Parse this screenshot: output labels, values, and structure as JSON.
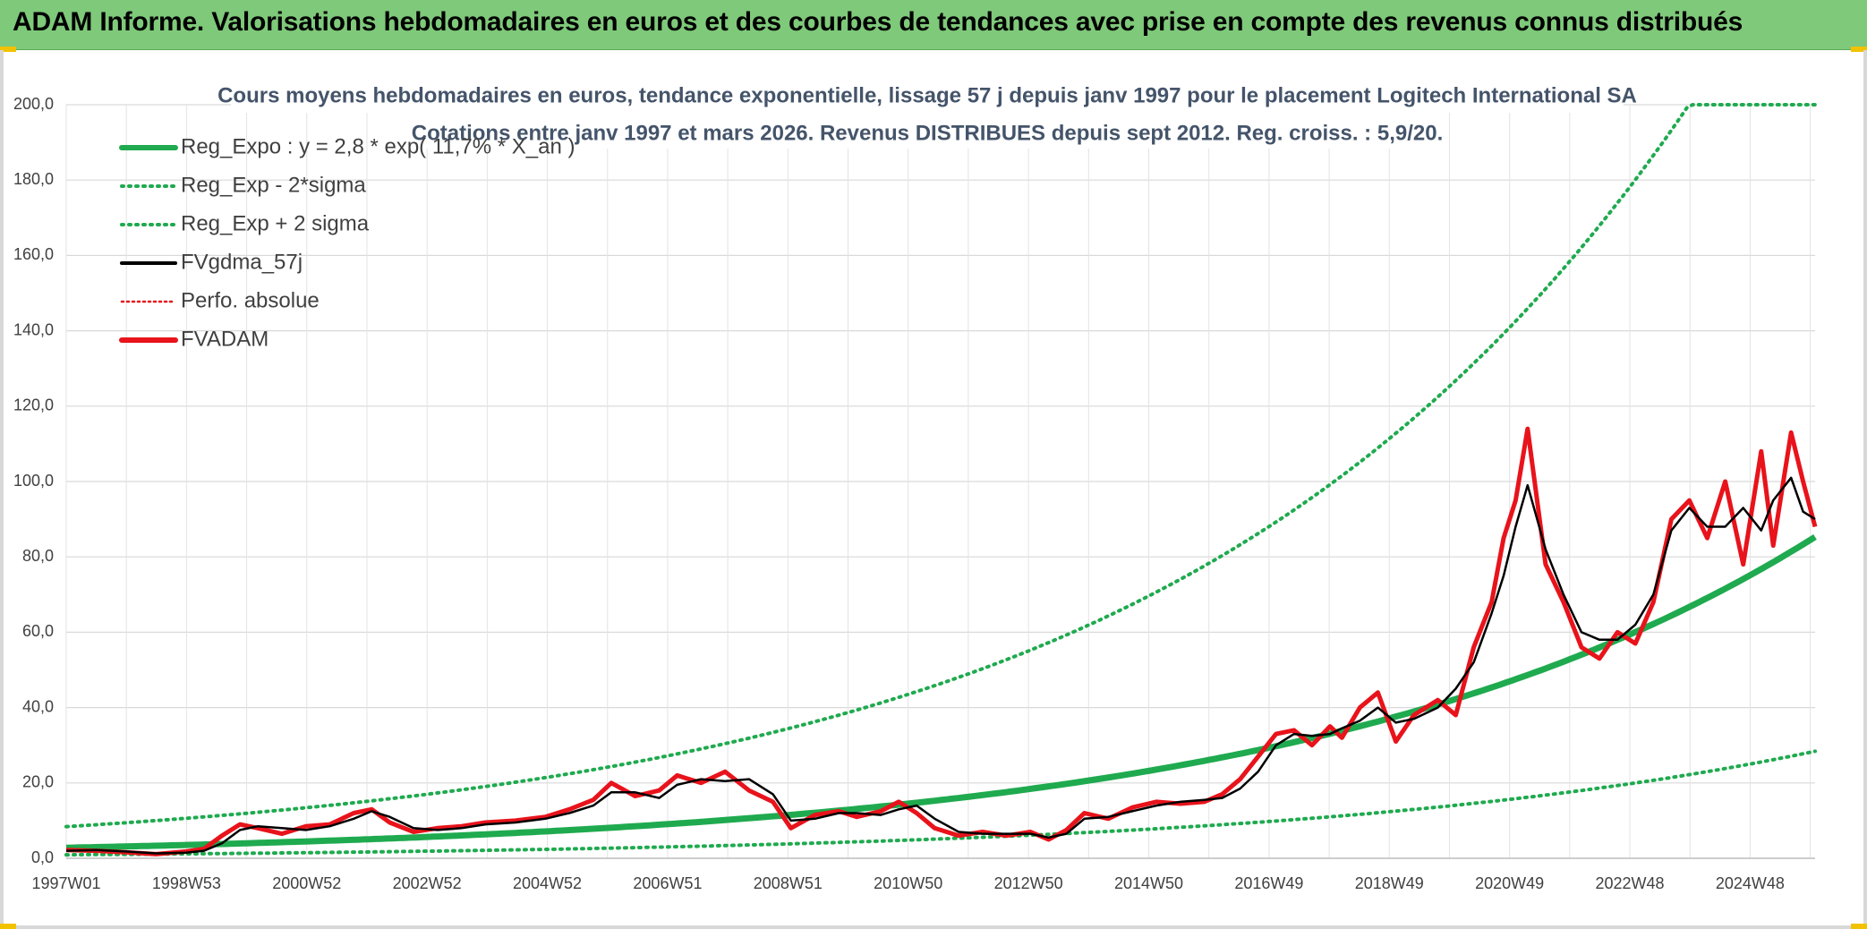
{
  "banner": {
    "title": "ADAM Informe. Valorisations hebdomadaires en euros et des courbes de tendances avec prise en compte des revenus connus distribués"
  },
  "colors": {
    "banner_bg": "#7fc97a",
    "accent_corner": "#f2c200",
    "trend_green": "#1faa4f",
    "black_line": "#000000",
    "red_line": "#e8131b"
  },
  "chart_data": {
    "type": "line",
    "title_line1": "Cours moyens hebdomadaires en euros, tendance exponentielle, lissage 57 j depuis janv 1997 pour le placement Logitech International SA",
    "title_line2": "Cotations entre janv 1997 et mars 2026. Revenus DISTRIBUES depuis sept 2012. Reg. croiss. : 5,9/20.",
    "x_tick_labels": [
      "1997W01",
      "1998W53",
      "2000W52",
      "2002W52",
      "2004W52",
      "2006W51",
      "2008W51",
      "2010W50",
      "2012W50",
      "2014W50",
      "2016W49",
      "2018W49",
      "2020W49",
      "2022W48",
      "2024W48"
    ],
    "x_range": [
      1997.0,
      2026.2
    ],
    "ylim": [
      0,
      200
    ],
    "y_ticks": [
      "0,0",
      "20,0",
      "40,0",
      "60,0",
      "80,0",
      "100,0",
      "120,0",
      "140,0",
      "160,0",
      "180,0",
      "200,0"
    ],
    "grid": true,
    "legend_position": "top-left",
    "legend": [
      {
        "label": "Reg_Expo : y = 2,8 * exp( 11,7% *  X_an )",
        "style": "solid-thick",
        "color": "#1faa4f"
      },
      {
        "label": "Reg_Exp - 2*sigma",
        "style": "dotted",
        "color": "#1faa4f"
      },
      {
        "label": "Reg_Exp + 2 sigma",
        "style": "dotted",
        "color": "#1faa4f"
      },
      {
        "label": "FVgdma_57j",
        "style": "solid",
        "color": "#000000"
      },
      {
        "label": "Perfo. absolue",
        "style": "dotted-thin",
        "color": "#e8131b"
      },
      {
        "label": "FVADAM",
        "style": "solid-thick",
        "color": "#e8131b"
      }
    ],
    "trend": {
      "a": 2.8,
      "rate": 0.117,
      "lower_factor": 0.333,
      "upper_factor": 3.0,
      "cap": 200
    },
    "series": [
      {
        "name": "FVgdma_57j",
        "x": [
          1997.0,
          1997.5,
          1998.0,
          1998.5,
          1999.0,
          1999.3,
          1999.6,
          1999.9,
          2000.2,
          2000.6,
          2001.0,
          2001.4,
          2001.8,
          2002.1,
          2002.4,
          2002.8,
          2003.2,
          2003.6,
          2004.0,
          2004.5,
          2005.0,
          2005.4,
          2005.8,
          2006.1,
          2006.5,
          2006.9,
          2007.2,
          2007.6,
          2008.0,
          2008.4,
          2008.8,
          2009.1,
          2009.5,
          2009.9,
          2010.2,
          2010.6,
          2010.9,
          2011.2,
          2011.5,
          2011.9,
          2012.3,
          2012.7,
          2013.1,
          2013.4,
          2013.7,
          2014.0,
          2014.4,
          2014.8,
          2015.2,
          2015.6,
          2016.0,
          2016.3,
          2016.6,
          2016.9,
          2017.2,
          2017.5,
          2017.8,
          2018.1,
          2018.3,
          2018.6,
          2018.9,
          2019.2,
          2019.5,
          2019.9,
          2020.2,
          2020.5,
          2020.8,
          2021.0,
          2021.2,
          2021.4,
          2021.7,
          2022.0,
          2022.3,
          2022.6,
          2022.9,
          2023.2,
          2023.5,
          2023.8,
          2024.1,
          2024.4,
          2024.7,
          2025.0,
          2025.3,
          2025.5,
          2025.8,
          2026.0,
          2026.2
        ],
        "y": [
          2.0,
          2.2,
          1.8,
          1.3,
          1.5,
          2.0,
          4.0,
          7.5,
          8.5,
          8.0,
          7.5,
          8.5,
          10.5,
          12.5,
          11.0,
          8.0,
          7.5,
          8.0,
          9.0,
          9.5,
          10.5,
          12.0,
          14.0,
          17.5,
          17.5,
          16.0,
          19.5,
          21.0,
          20.5,
          21.0,
          17.0,
          10.0,
          10.5,
          12.0,
          12.0,
          11.5,
          13.0,
          14.0,
          10.5,
          7.0,
          6.5,
          6.5,
          6.5,
          5.5,
          6.5,
          10.5,
          11.0,
          12.5,
          14.0,
          15.0,
          15.5,
          16.0,
          18.5,
          23.0,
          30.0,
          33.0,
          32.5,
          33.0,
          34.5,
          36.5,
          40.0,
          36.0,
          37.0,
          40.0,
          45.0,
          52.0,
          65.0,
          75.0,
          88.0,
          99.0,
          82.0,
          70.0,
          60.0,
          58.0,
          58.0,
          62.0,
          70.0,
          87.0,
          93.0,
          88.0,
          88.0,
          93.0,
          87.0,
          95.0,
          101.0,
          92.0,
          90.0
        ]
      },
      {
        "name": "FVADAM",
        "x": [
          1997.0,
          1997.5,
          1998.0,
          1998.5,
          1999.0,
          1999.3,
          1999.6,
          1999.9,
          2000.2,
          2000.6,
          2001.0,
          2001.4,
          2001.8,
          2002.1,
          2002.4,
          2002.8,
          2003.2,
          2003.6,
          2004.0,
          2004.5,
          2005.0,
          2005.4,
          2005.8,
          2006.1,
          2006.5,
          2006.9,
          2007.2,
          2007.6,
          2008.0,
          2008.4,
          2008.8,
          2009.1,
          2009.5,
          2009.9,
          2010.2,
          2010.6,
          2010.9,
          2011.2,
          2011.5,
          2011.9,
          2012.3,
          2012.7,
          2013.1,
          2013.4,
          2013.7,
          2014.0,
          2014.4,
          2014.8,
          2015.2,
          2015.6,
          2016.0,
          2016.3,
          2016.6,
          2016.9,
          2017.2,
          2017.5,
          2017.8,
          2018.1,
          2018.3,
          2018.6,
          2018.9,
          2019.2,
          2019.5,
          2019.9,
          2020.2,
          2020.5,
          2020.8,
          2021.0,
          2021.2,
          2021.4,
          2021.7,
          2022.0,
          2022.3,
          2022.6,
          2022.9,
          2023.2,
          2023.5,
          2023.8,
          2024.1,
          2024.4,
          2024.7,
          2025.0,
          2025.3,
          2025.5,
          2025.8,
          2026.0,
          2026.2
        ],
        "y": [
          2.2,
          2.0,
          1.6,
          1.1,
          1.8,
          2.5,
          6.0,
          9.0,
          8.0,
          6.5,
          8.5,
          9.0,
          12.0,
          13.0,
          9.5,
          7.0,
          8.0,
          8.5,
          9.5,
          10.0,
          11.0,
          13.0,
          15.5,
          20.0,
          16.5,
          18.0,
          22.0,
          20.0,
          23.0,
          18.0,
          15.0,
          8.0,
          11.5,
          12.5,
          11.0,
          12.5,
          15.0,
          12.0,
          8.0,
          6.0,
          7.0,
          6.0,
          7.0,
          5.0,
          7.5,
          12.0,
          10.5,
          13.5,
          15.0,
          14.5,
          15.0,
          17.0,
          21.0,
          27.0,
          33.0,
          34.0,
          30.0,
          35.0,
          32.0,
          40.0,
          44.0,
          31.0,
          38.0,
          42.0,
          38.0,
          56.0,
          68.0,
          85.0,
          95.0,
          114.0,
          78.0,
          68.0,
          56.0,
          53.0,
          60.0,
          57.0,
          68.0,
          90.0,
          95.0,
          85.0,
          100.0,
          78.0,
          108.0,
          83.0,
          113.0,
          100.0,
          88.0
        ]
      }
    ]
  }
}
